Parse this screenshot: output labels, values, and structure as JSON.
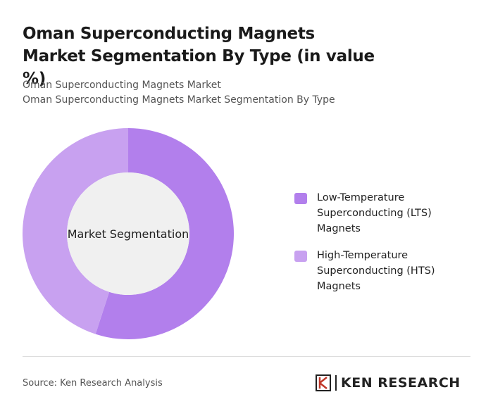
{
  "chart_data": {
    "type": "donut",
    "title": "Oman Superconducting Magnets Market Segmentation By Type (in value %)",
    "subtitles": [
      "Oman Superconducting Magnets Market",
      "Oman Superconducting Magnets Market Segmentation By Type"
    ],
    "center_label": "Market Segmentation",
    "series": [
      {
        "name": "Low-Temperature Superconducting (LTS) Magnets",
        "color": "#b27fec",
        "values": [
          55
        ]
      },
      {
        "name": "High-Temperature Superconducting (HTS) Magnets",
        "color": "#c8a1f0",
        "values": [
          45
        ]
      }
    ],
    "source": "Source: Ken Research Analysis",
    "logo": "KEN RESEARCH"
  }
}
